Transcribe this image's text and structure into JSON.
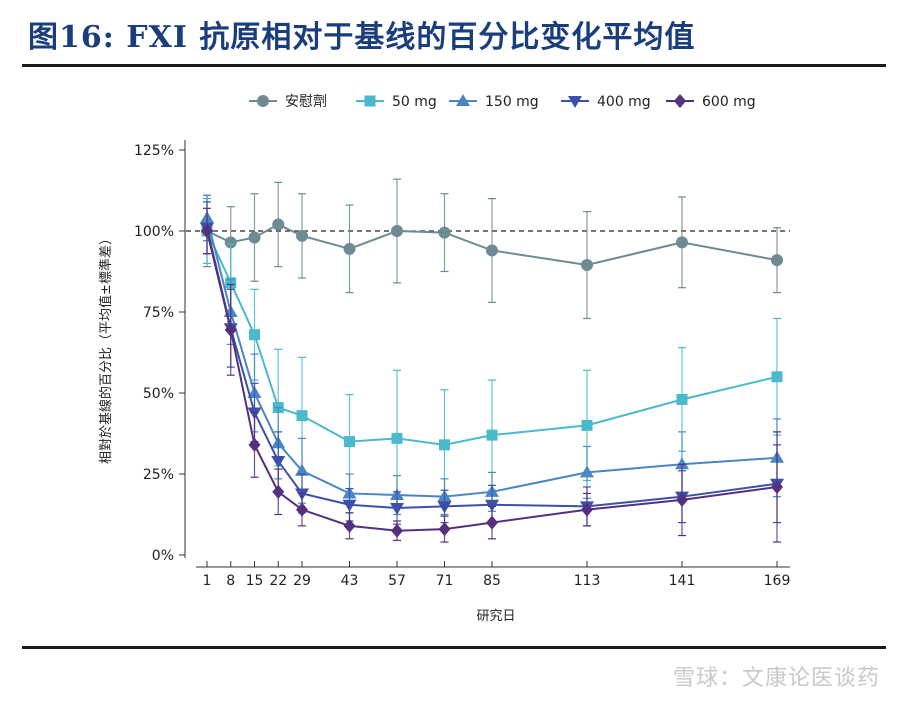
{
  "header": {
    "title": "图16:  FXI 抗原相对于基线的百分比变化平均值"
  },
  "watermark": {
    "text": "雪球：文康论医谈药"
  },
  "chart_data": {
    "type": "line",
    "title": "",
    "xlabel": "研究日",
    "ylabel": "相對於基線的百分比（平均值±標準差）",
    "categories": [
      1,
      8,
      15,
      22,
      29,
      43,
      57,
      71,
      85,
      113,
      141,
      169
    ],
    "x_ticks": [
      "1",
      "8",
      "15",
      "22",
      "29",
      "43",
      "57",
      "71",
      "85",
      "113",
      "141",
      "169"
    ],
    "y_ticks": [
      "0%",
      "25%",
      "50%",
      "75%",
      "100%",
      "125%"
    ],
    "ylim": [
      0,
      125
    ],
    "reference_line": 100,
    "legend_position": "top",
    "series": [
      {
        "name": "安慰劑",
        "marker": "circle",
        "color": "#6e8a92",
        "x": [
          1,
          8,
          15,
          22,
          29,
          43,
          57,
          71,
          85,
          113,
          141,
          169
        ],
        "values": [
          100,
          96.5,
          98,
          102,
          98.5,
          94.5,
          100,
          99.5,
          94,
          89.5,
          96.5,
          91
        ],
        "errors": [
          11,
          11,
          13.5,
          13,
          13,
          13.5,
          16,
          12,
          16,
          16.5,
          14,
          10
        ]
      },
      {
        "name": "50 mg",
        "marker": "square",
        "color": "#4ab9cc",
        "x": [
          1,
          8,
          15,
          22,
          29,
          43,
          57,
          71,
          85,
          113,
          141,
          169
        ],
        "values": [
          100,
          84,
          68,
          45.5,
          43,
          35,
          36,
          34,
          37,
          40,
          48,
          55
        ],
        "errors": [
          10,
          12,
          14,
          18,
          18,
          14.5,
          21,
          17,
          17,
          17,
          16,
          18
        ]
      },
      {
        "name": "150 mg",
        "marker": "triangle-up",
        "color": "#4a86c4",
        "x": [
          1,
          8,
          15,
          22,
          29,
          43,
          57,
          71,
          85,
          113,
          141,
          169
        ],
        "values": [
          104,
          75,
          50,
          34.5,
          26,
          19,
          18.5,
          18,
          19.5,
          25.5,
          28,
          30
        ],
        "errors": [
          7,
          10,
          12,
          11,
          10,
          6,
          6,
          5.5,
          6,
          8,
          10,
          12
        ]
      },
      {
        "name": "400 mg",
        "marker": "triangle-down",
        "color": "#3b50a8",
        "x": [
          1,
          8,
          15,
          22,
          29,
          43,
          57,
          71,
          85,
          113,
          141,
          169
        ],
        "values": [
          101,
          70,
          44,
          29,
          19,
          15.5,
          14.5,
          15,
          15.5,
          15,
          18,
          22
        ],
        "errors": [
          8,
          12,
          9,
          9,
          6,
          5,
          5,
          5,
          6,
          6,
          8,
          12
        ]
      },
      {
        "name": "600 mg",
        "marker": "diamond",
        "color": "#54307e",
        "x": [
          1,
          8,
          15,
          22,
          29,
          43,
          57,
          71,
          85,
          113,
          141,
          169
        ],
        "values": [
          100,
          69.5,
          34,
          19.5,
          14,
          9,
          7.5,
          8,
          10,
          14,
          17,
          21
        ],
        "errors": [
          7,
          14,
          10,
          7,
          5,
          4,
          3,
          4,
          5,
          5,
          11,
          17
        ]
      }
    ]
  }
}
